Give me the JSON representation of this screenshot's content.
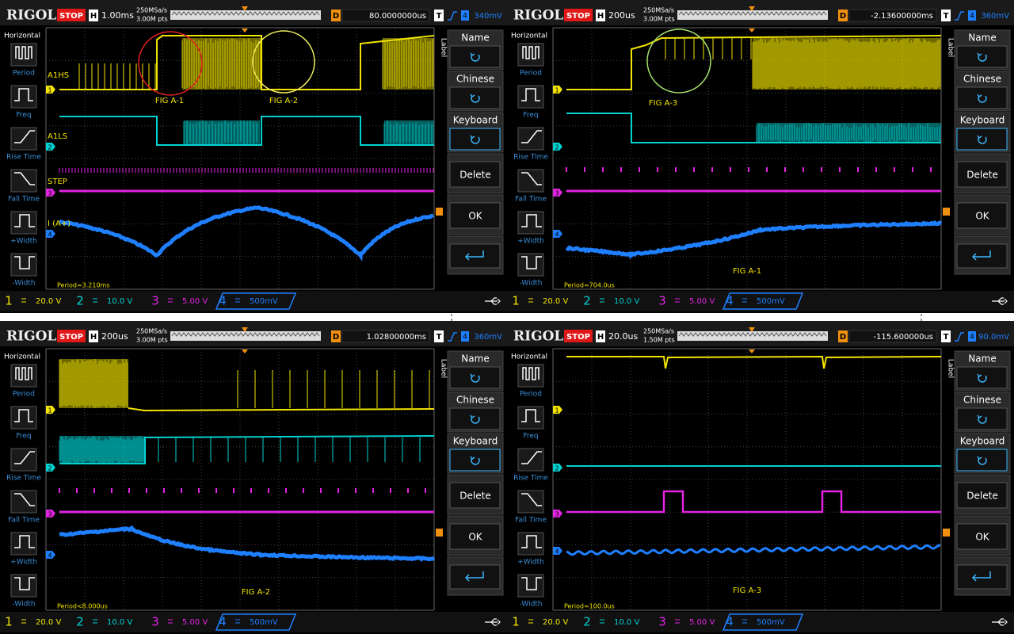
{
  "panels": [
    {
      "brand": "RIGOL",
      "status": "STOP",
      "timebase_label": "H",
      "timebase": "1.00ms",
      "sample_rate": "250MSa/s",
      "points": "3.00M pts",
      "delay_label": "D",
      "delay": "80.0000000us",
      "trigger_label": "T",
      "trigger_source": "4",
      "trigger_level": "340mV",
      "sidebar": {
        "title": "Horizontal",
        "items": [
          "Period",
          "Freq",
          "Rise Time",
          "Fall Time",
          "+Width",
          "-Width"
        ]
      },
      "menu": {
        "title": "Label",
        "buttons": [
          "Name",
          "Chinese",
          "Keyboard",
          "Delete",
          "OK"
        ]
      },
      "channels": [
        {
          "number": "1",
          "scale": "20.0 V"
        },
        {
          "number": "2",
          "scale": "10.0 V"
        },
        {
          "number": "3",
          "scale": "5.00 V"
        },
        {
          "number": "4",
          "scale": "500mV"
        }
      ],
      "measurement": "Period=3.210ms",
      "annotations": [
        "A1HS",
        "FIG A-1",
        "FIG A-2",
        "A1LS",
        "STEP",
        "I (A+)"
      ]
    },
    {
      "brand": "RIGOL",
      "status": "STOP",
      "timebase_label": "H",
      "timebase": "200us",
      "sample_rate": "250MSa/s",
      "points": "3.00M pts",
      "delay_label": "D",
      "delay": "-2.13600000ms",
      "trigger_label": "T",
      "trigger_source": "4",
      "trigger_level": "360mV",
      "sidebar": {
        "title": "Horizontal",
        "items": [
          "Period",
          "Freq",
          "Rise Time",
          "Fall Time",
          "+Width",
          "-Width"
        ]
      },
      "menu": {
        "title": "Label",
        "buttons": [
          "Name",
          "Chinese",
          "Keyboard",
          "Delete",
          "OK"
        ]
      },
      "channels": [
        {
          "number": "1",
          "scale": "20.0 V"
        },
        {
          "number": "2",
          "scale": "10.0 V"
        },
        {
          "number": "3",
          "scale": "5.00 V"
        },
        {
          "number": "4",
          "scale": "500mV"
        }
      ],
      "measurement": "Period=704.0us",
      "annotations": [
        "FIG A-3",
        "FIG A-1"
      ]
    },
    {
      "brand": "RIGOL",
      "status": "STOP",
      "timebase_label": "H",
      "timebase": "200us",
      "sample_rate": "250MSa/s",
      "points": "3.00M pts",
      "delay_label": "D",
      "delay": "1.02800000ms",
      "trigger_label": "T",
      "trigger_source": "4",
      "trigger_level": "360mV",
      "sidebar": {
        "title": "Horizontal",
        "items": [
          "Period",
          "Freq",
          "Rise Time",
          "Fall Time",
          "+Width",
          "-Width"
        ]
      },
      "menu": {
        "title": "Label",
        "buttons": [
          "Name",
          "Chinese",
          "Keyboard",
          "Delete",
          "OK"
        ]
      },
      "channels": [
        {
          "number": "1",
          "scale": "20.0 V"
        },
        {
          "number": "2",
          "scale": "10.0 V"
        },
        {
          "number": "3",
          "scale": "5.00 V"
        },
        {
          "number": "4",
          "scale": "500mV"
        }
      ],
      "measurement": "Period<8.000us",
      "annotations": [
        "FIG A-2"
      ]
    },
    {
      "brand": "RIGOL",
      "status": "STOP",
      "timebase_label": "H",
      "timebase": "20.0us",
      "sample_rate": "250MSa/s",
      "points": "1.50M pts",
      "delay_label": "D",
      "delay": "-115.600000us",
      "trigger_label": "T",
      "trigger_source": "4",
      "trigger_level": "90.0mV",
      "sidebar": {
        "title": "Horizontal",
        "items": [
          "Period",
          "Freq",
          "Rise Time",
          "Fall Time",
          "+Width",
          "-Width"
        ]
      },
      "menu": {
        "title": "Label",
        "buttons": [
          "Name",
          "Chinese",
          "Keyboard",
          "Delete",
          "OK"
        ]
      },
      "channels": [
        {
          "number": "1",
          "scale": "20.0 V"
        },
        {
          "number": "2",
          "scale": "10.0 V"
        },
        {
          "number": "3",
          "scale": "5.00 V"
        },
        {
          "number": "4",
          "scale": "500mV"
        }
      ],
      "measurement": "Period=100.0us",
      "annotations": [
        "FIG A-3"
      ]
    }
  ]
}
